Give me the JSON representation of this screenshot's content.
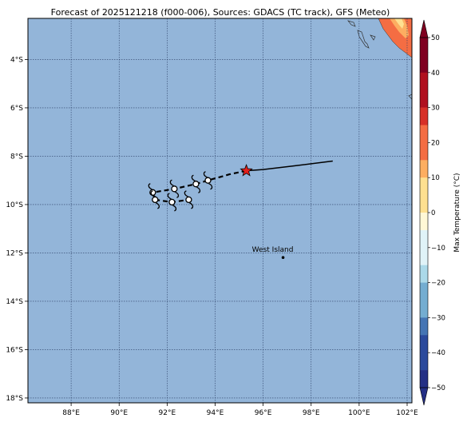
{
  "title": "Forecast of 2025121218 (f000-006), Sources: GDACS (TC track), GFS (Meteo)",
  "colors": {
    "ocean": "#93b5d9",
    "grid": "#2b3f66",
    "track": "#000000",
    "star_fill": "#e3201b",
    "land_cold": "#ffffff"
  },
  "map": {
    "lon_range": [
      86.2,
      102.2
    ],
    "lat_range": [
      -18.2,
      -2.3
    ],
    "x_ticks": [
      "88°E",
      "90°E",
      "92°E",
      "94°E",
      "96°E",
      "98°E",
      "100°E",
      "102°E"
    ],
    "y_ticks": [
      "4°S",
      "6°S",
      "8°S",
      "10°S",
      "12°S",
      "14°S",
      "16°S",
      "18°S"
    ],
    "places": [
      {
        "name": "West Island",
        "lon": 96.83,
        "lat": -12.19
      }
    ],
    "current_position": {
      "lon": 95.3,
      "lat": -8.6
    },
    "past_track": [
      [
        98.9,
        -8.2
      ],
      [
        97.3,
        -8.4
      ],
      [
        96.0,
        -8.55
      ],
      [
        95.3,
        -8.6
      ]
    ],
    "forecast_track": [
      [
        95.3,
        -8.6
      ],
      [
        94.6,
        -8.75
      ],
      [
        93.7,
        -9.0
      ],
      [
        93.2,
        -9.15
      ],
      [
        92.3,
        -9.35
      ],
      [
        91.4,
        -9.5
      ],
      [
        91.5,
        -9.8
      ],
      [
        92.2,
        -9.9
      ],
      [
        92.9,
        -9.8
      ]
    ],
    "storm_symbols": [
      [
        93.7,
        -9.0
      ],
      [
        93.2,
        -9.15
      ],
      [
        92.3,
        -9.35
      ],
      [
        91.4,
        -9.5
      ],
      [
        91.5,
        -9.8
      ],
      [
        92.2,
        -9.9
      ],
      [
        92.9,
        -9.8
      ]
    ]
  },
  "colorbar": {
    "label": "Max Temperature (°C)",
    "ticks": [
      "50",
      "40",
      "30",
      "20",
      "10",
      "0",
      "−10",
      "−20",
      "−30",
      "−40",
      "−50"
    ],
    "bands": [
      "#7f0020",
      "#b0101f",
      "#d73027",
      "#f46d43",
      "#fdae61",
      "#fee090",
      "#fff8d6",
      "#e0f3f8",
      "#abd9e9",
      "#74add1",
      "#4575b4",
      "#2b4a9c",
      "#242f85"
    ],
    "levels": [
      50,
      45,
      40,
      35,
      30,
      25,
      20,
      15,
      10,
      5,
      0,
      -5,
      -10,
      -15,
      -20,
      -25,
      -30,
      -35,
      -40,
      -45,
      -50
    ]
  }
}
